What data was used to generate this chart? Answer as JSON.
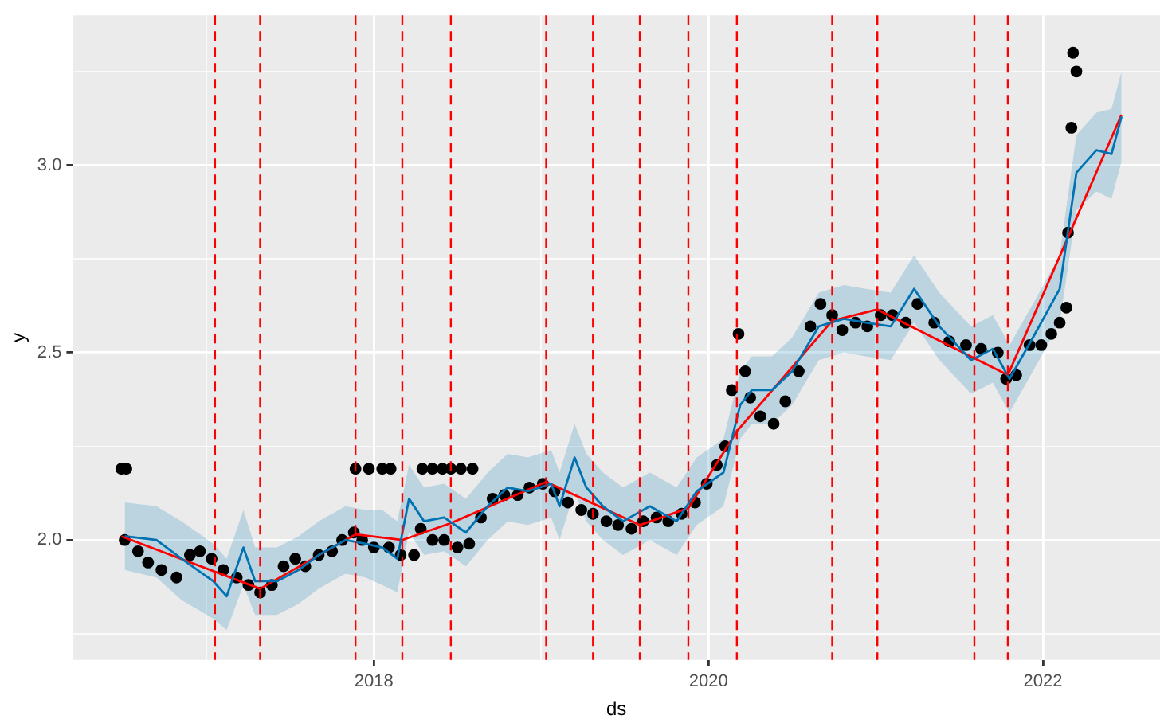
{
  "chart_data": {
    "type": "scatter",
    "xlabel": "ds",
    "ylabel": "y",
    "xlim": [
      2016.2,
      2022.7
    ],
    "xticks": [
      {
        "value": 2017,
        "label": null
      },
      2018,
      {
        "value": 2019,
        "label": null
      },
      2020,
      {
        "value": 2021,
        "label": null
      },
      2022
    ],
    "ylim": [
      1.68,
      3.4
    ],
    "yticks": [
      {
        "value": 1.75,
        "label": null
      },
      {
        "value": 2,
        "label": "2.0"
      },
      {
        "value": 2.25,
        "label": null
      },
      {
        "value": 2.5,
        "label": "2.5"
      },
      {
        "value": 2.75,
        "label": null
      },
      {
        "value": 3,
        "label": "3.0"
      },
      {
        "value": 3.25,
        "label": null
      }
    ],
    "grid": true,
    "legend": false,
    "series": [
      {
        "marker": "circle",
        "color": "#000000",
        "x": [
          2016.49,
          2016.52,
          2017.89,
          2017.97,
          2018.05,
          2018.1,
          2018.29,
          2018.35,
          2018.41,
          2018.46,
          2018.52,
          2018.59,
          2016.51,
          2016.59,
          2016.65,
          2016.73,
          2016.82,
          2016.9,
          2016.96,
          2017.03,
          2017.1,
          2017.18,
          2017.25,
          2017.32,
          2017.39,
          2017.46,
          2017.53,
          2017.59,
          2017.67,
          2017.75,
          2017.81,
          2017.88,
          2017.93,
          2018.0,
          2018.09,
          2018.16,
          2018.24,
          2018.28,
          2018.35,
          2018.42,
          2018.5,
          2018.57,
          2018.64,
          2018.71,
          2018.78,
          2018.86,
          2018.93,
          2019.01,
          2019.08,
          2019.16,
          2019.24,
          2019.31,
          2019.39,
          2019.46,
          2019.54,
          2019.61,
          2019.69,
          2019.76,
          2019.84,
          2019.92,
          2019.99,
          2020.05,
          2020.1,
          2020.14,
          2020.18,
          2020.22,
          2020.25,
          2020.31,
          2020.39,
          2020.46,
          2020.54,
          2020.61,
          2020.67,
          2020.74,
          2020.8,
          2020.88,
          2020.95,
          2021.03,
          2021.1,
          2021.18,
          2021.25,
          2021.35,
          2021.44,
          2021.54,
          2021.63,
          2021.73,
          2021.78,
          2021.84,
          2021.92,
          2021.99,
          2022.05,
          2022.1,
          2022.14,
          2022.15,
          2022.17,
          2022.18,
          2022.2
        ],
        "values": [
          2.19,
          2.19,
          2.19,
          2.19,
          2.19,
          2.19,
          2.19,
          2.19,
          2.19,
          2.19,
          2.19,
          2.19,
          2.0,
          1.97,
          1.94,
          1.92,
          1.9,
          1.96,
          1.97,
          1.95,
          1.92,
          1.9,
          1.88,
          1.86,
          1.88,
          1.93,
          1.95,
          1.93,
          1.96,
          1.97,
          2.0,
          2.02,
          2.0,
          1.98,
          1.98,
          1.96,
          1.96,
          2.03,
          2.0,
          2.0,
          1.98,
          1.99,
          2.06,
          2.11,
          2.12,
          2.12,
          2.14,
          2.15,
          2.13,
          2.1,
          2.08,
          2.07,
          2.05,
          2.04,
          2.03,
          2.05,
          2.06,
          2.05,
          2.07,
          2.1,
          2.15,
          2.2,
          2.25,
          2.4,
          2.55,
          2.45,
          2.38,
          2.33,
          2.31,
          2.37,
          2.45,
          2.57,
          2.63,
          2.6,
          2.56,
          2.58,
          2.57,
          2.6,
          2.6,
          2.58,
          2.63,
          2.58,
          2.53,
          2.52,
          2.51,
          2.5,
          2.43,
          2.44,
          2.52,
          2.52,
          2.55,
          2.58,
          2.62,
          2.82,
          3.1,
          3.3,
          3.25
        ]
      },
      {
        "type": "line",
        "color": "#0072b2",
        "x": [
          2016.51,
          2016.7,
          2016.85,
          2017.04,
          2017.12,
          2017.22,
          2017.29,
          2017.42,
          2017.55,
          2017.67,
          2017.83,
          2017.95,
          2018.05,
          2018.14,
          2018.21,
          2018.3,
          2018.42,
          2018.55,
          2018.68,
          2018.8,
          2018.92,
          2019.06,
          2019.11,
          2019.2,
          2019.27,
          2019.37,
          2019.49,
          2019.65,
          2019.81,
          2019.93,
          2020.09,
          2020.19,
          2020.26,
          2020.38,
          2020.5,
          2020.66,
          2020.81,
          2020.94,
          2021.09,
          2021.23,
          2021.38,
          2021.57,
          2021.7,
          2021.8,
          2021.94,
          2022.1,
          2022.2,
          2022.32,
          2022.41,
          2022.47
        ],
        "values": [
          2.01,
          2.0,
          1.95,
          1.89,
          1.85,
          1.98,
          1.89,
          1.89,
          1.92,
          1.96,
          2.0,
          1.99,
          1.98,
          1.95,
          2.11,
          2.05,
          2.06,
          2.02,
          2.09,
          2.14,
          2.13,
          2.15,
          2.09,
          2.22,
          2.14,
          2.09,
          2.05,
          2.09,
          2.05,
          2.13,
          2.18,
          2.36,
          2.4,
          2.4,
          2.45,
          2.57,
          2.59,
          2.58,
          2.57,
          2.67,
          2.57,
          2.48,
          2.51,
          2.43,
          2.54,
          2.67,
          2.98,
          3.04,
          3.03,
          3.13
        ],
        "lower": [
          1.92,
          1.9,
          1.84,
          1.79,
          1.76,
          1.88,
          1.8,
          1.8,
          1.83,
          1.87,
          1.91,
          1.9,
          1.88,
          1.86,
          2.02,
          1.96,
          1.97,
          1.93,
          2.0,
          2.05,
          2.04,
          2.06,
          2.0,
          2.13,
          2.05,
          2.0,
          1.96,
          2.0,
          1.96,
          2.04,
          2.09,
          2.27,
          2.31,
          2.31,
          2.36,
          2.48,
          2.5,
          2.49,
          2.48,
          2.58,
          2.48,
          2.39,
          2.42,
          2.34,
          2.45,
          2.58,
          2.88,
          2.93,
          2.91,
          3.01
        ],
        "upper": [
          2.1,
          2.09,
          2.05,
          1.99,
          1.95,
          2.08,
          1.98,
          1.98,
          2.01,
          2.05,
          2.09,
          2.08,
          2.08,
          2.05,
          2.2,
          2.14,
          2.15,
          2.11,
          2.18,
          2.23,
          2.22,
          2.24,
          2.18,
          2.31,
          2.23,
          2.18,
          2.14,
          2.18,
          2.14,
          2.22,
          2.27,
          2.45,
          2.49,
          2.49,
          2.54,
          2.66,
          2.68,
          2.67,
          2.66,
          2.76,
          2.66,
          2.57,
          2.6,
          2.52,
          2.63,
          2.76,
          3.08,
          3.14,
          3.15,
          3.25
        ]
      },
      {
        "type": "line",
        "color": "#ff0000",
        "x": [
          2016.49,
          2017.32,
          2017.89,
          2018.17,
          2018.46,
          2019.03,
          2019.59,
          2019.88,
          2020.17,
          2020.74,
          2021.01,
          2021.79,
          2022.47
        ],
        "values": [
          2.01,
          1.87,
          2.015,
          2.0,
          2.045,
          2.155,
          2.04,
          2.085,
          2.29,
          2.585,
          2.615,
          2.44,
          3.135
        ]
      }
    ],
    "ref_lines": [
      {
        "axis": "x",
        "value": 2017.05,
        "color": "#ff0000",
        "line_style": "dashed"
      },
      {
        "axis": "x",
        "value": 2017.32,
        "color": "#ff0000",
        "line_style": "dashed"
      },
      {
        "axis": "x",
        "value": 2017.89,
        "color": "#ff0000",
        "line_style": "dashed"
      },
      {
        "axis": "x",
        "value": 2018.17,
        "color": "#ff0000",
        "line_style": "dashed"
      },
      {
        "axis": "x",
        "value": 2018.46,
        "color": "#ff0000",
        "line_style": "dashed"
      },
      {
        "axis": "x",
        "value": 2019.03,
        "color": "#ff0000",
        "line_style": "dashed"
      },
      {
        "axis": "x",
        "value": 2019.31,
        "color": "#ff0000",
        "line_style": "dashed"
      },
      {
        "axis": "x",
        "value": 2019.59,
        "color": "#ff0000",
        "line_style": "dashed"
      },
      {
        "axis": "x",
        "value": 2019.88,
        "color": "#ff0000",
        "line_style": "dashed"
      },
      {
        "axis": "x",
        "value": 2020.17,
        "color": "#ff0000",
        "line_style": "dashed"
      },
      {
        "axis": "x",
        "value": 2020.74,
        "color": "#ff0000",
        "line_style": "dashed"
      },
      {
        "axis": "x",
        "value": 2021.01,
        "color": "#ff0000",
        "line_style": "dashed"
      },
      {
        "axis": "x",
        "value": 2021.59,
        "color": "#ff0000",
        "line_style": "dashed"
      },
      {
        "axis": "x",
        "value": 2021.79,
        "color": "#ff0000",
        "line_style": "dashed"
      }
    ]
  }
}
